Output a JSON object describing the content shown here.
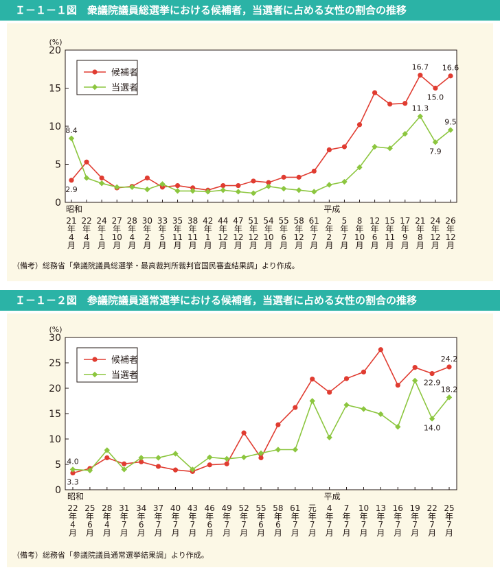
{
  "figure1": {
    "title": "Ｉ－１－１図　衆議院議員総選挙における候補者，当選者に占める女性の割合の推移",
    "note": "（備考）総務省「衆議院議員総選挙・最高裁判所裁判官国民審査結果調」より作成。"
  },
  "figure2": {
    "title": "Ｉ－１－２図　参議院議員通常選挙における候補者，当選者に占める女性の割合の推移",
    "note": "（備考）総務省「参議院議員通常選挙結果調」より作成。"
  },
  "colors": {
    "candidates": "#e03c31",
    "elected": "#8cc63f",
    "banner": "#2bb3a6",
    "panel": "#fcf8e6"
  },
  "chart_data": [
    {
      "type": "line",
      "unit": "(%)",
      "ylim": [
        0,
        20
      ],
      "yticks": [
        0,
        5,
        10,
        15,
        20
      ],
      "era_labels": [
        {
          "index": 0,
          "label": "昭和"
        },
        {
          "index": 17,
          "label": "平成"
        }
      ],
      "categories": [
        {
          "year": "21",
          "month": "4"
        },
        {
          "year": "22",
          "month": "4"
        },
        {
          "year": "24",
          "month": "1"
        },
        {
          "year": "27",
          "month": "10"
        },
        {
          "year": "28",
          "month": "4"
        },
        {
          "year": "30",
          "month": "2"
        },
        {
          "year": "33",
          "month": "5"
        },
        {
          "year": "35",
          "month": "11"
        },
        {
          "year": "38",
          "month": "11"
        },
        {
          "year": "42",
          "month": "1"
        },
        {
          "year": "44",
          "month": "12"
        },
        {
          "year": "47",
          "month": "12"
        },
        {
          "year": "51",
          "month": "12"
        },
        {
          "year": "54",
          "month": "10"
        },
        {
          "year": "55",
          "month": "6"
        },
        {
          "year": "58",
          "month": "12"
        },
        {
          "year": "61",
          "month": "7"
        },
        {
          "year": "2",
          "month": "2"
        },
        {
          "year": "5",
          "month": "7"
        },
        {
          "year": "8",
          "month": "10"
        },
        {
          "year": "12",
          "month": "6"
        },
        {
          "year": "15",
          "month": "11"
        },
        {
          "year": "17",
          "month": "9"
        },
        {
          "year": "21",
          "month": "8"
        },
        {
          "year": "24",
          "month": "12"
        },
        {
          "year": "26",
          "month": "12"
        }
      ],
      "series": [
        {
          "name": "候補者",
          "values": [
            2.9,
            5.3,
            3.2,
            1.9,
            2.1,
            3.2,
            2.0,
            2.2,
            1.9,
            1.6,
            2.2,
            2.2,
            2.8,
            2.6,
            3.3,
            3.3,
            4.1,
            6.9,
            7.3,
            10.2,
            14.4,
            12.9,
            13.0,
            16.7,
            15.0,
            16.6
          ]
        },
        {
          "name": "当選者",
          "values": [
            8.4,
            3.2,
            2.5,
            2.0,
            2.0,
            1.7,
            2.4,
            1.5,
            1.5,
            1.4,
            1.6,
            1.4,
            1.2,
            2.1,
            1.8,
            1.6,
            1.4,
            2.3,
            2.7,
            4.6,
            7.3,
            7.1,
            9.0,
            11.3,
            7.9,
            9.5
          ]
        }
      ],
      "data_labels": [
        {
          "series": 0,
          "index": 0,
          "text": "2.9",
          "pos": "below"
        },
        {
          "series": 1,
          "index": 0,
          "text": "8.4",
          "pos": "above"
        },
        {
          "series": 0,
          "index": 23,
          "text": "16.7",
          "pos": "above"
        },
        {
          "series": 0,
          "index": 24,
          "text": "15.0",
          "pos": "below"
        },
        {
          "series": 0,
          "index": 25,
          "text": "16.6",
          "pos": "above"
        },
        {
          "series": 1,
          "index": 23,
          "text": "11.3",
          "pos": "above"
        },
        {
          "series": 1,
          "index": 24,
          "text": "7.9",
          "pos": "below"
        },
        {
          "series": 1,
          "index": 25,
          "text": "9.5",
          "pos": "above"
        }
      ],
      "grid": false,
      "legend": "top-left"
    },
    {
      "type": "line",
      "unit": "(%)",
      "ylim": [
        0,
        30
      ],
      "yticks": [
        0,
        5,
        10,
        15,
        20,
        25,
        30
      ],
      "era_labels": [
        {
          "index": 0,
          "label": "昭和"
        },
        {
          "index": 15,
          "label": "平成"
        }
      ],
      "categories": [
        {
          "year": "22",
          "month": "4"
        },
        {
          "year": "25",
          "month": "6"
        },
        {
          "year": "28",
          "month": "4"
        },
        {
          "year": "31",
          "month": "7"
        },
        {
          "year": "34",
          "month": "6"
        },
        {
          "year": "37",
          "month": "7"
        },
        {
          "year": "40",
          "month": "7"
        },
        {
          "year": "43",
          "month": "7"
        },
        {
          "year": "46",
          "month": "6"
        },
        {
          "year": "49",
          "month": "7"
        },
        {
          "year": "52",
          "month": "7"
        },
        {
          "year": "55",
          "month": "6"
        },
        {
          "year": "58",
          "month": "6"
        },
        {
          "year": "61",
          "month": "7"
        },
        {
          "year": "元",
          "month": "7"
        },
        {
          "year": "4",
          "month": "7"
        },
        {
          "year": "7",
          "month": "7"
        },
        {
          "year": "10",
          "month": "7"
        },
        {
          "year": "13",
          "month": "7"
        },
        {
          "year": "16",
          "month": "7"
        },
        {
          "year": "19",
          "month": "7"
        },
        {
          "year": "22",
          "month": "7"
        },
        {
          "year": "25",
          "month": "7"
        }
      ],
      "series": [
        {
          "name": "候補者",
          "values": [
            3.3,
            4.2,
            6.3,
            5.1,
            5.5,
            4.6,
            3.9,
            3.6,
            4.9,
            5.1,
            11.2,
            6.3,
            12.8,
            16.2,
            21.8,
            19.2,
            21.9,
            23.2,
            27.6,
            20.6,
            24.1,
            22.9,
            24.2
          ]
        },
        {
          "name": "当選者",
          "values": [
            4.0,
            3.8,
            7.8,
            4.0,
            6.3,
            6.3,
            7.1,
            4.0,
            6.4,
            6.1,
            6.4,
            7.2,
            7.9,
            7.9,
            17.5,
            10.3,
            16.7,
            15.9,
            14.9,
            12.4,
            21.5,
            14.0,
            18.2
          ]
        }
      ],
      "data_labels": [
        {
          "series": 1,
          "index": 0,
          "text": "4.0",
          "pos": "above"
        },
        {
          "series": 0,
          "index": 0,
          "text": "3.3",
          "pos": "below"
        },
        {
          "series": 0,
          "index": 21,
          "text": "22.9",
          "pos": "below"
        },
        {
          "series": 0,
          "index": 22,
          "text": "24.2",
          "pos": "above"
        },
        {
          "series": 1,
          "index": 21,
          "text": "14.0",
          "pos": "below"
        },
        {
          "series": 1,
          "index": 22,
          "text": "18.2",
          "pos": "above"
        }
      ],
      "grid": false,
      "legend": "top-left"
    }
  ]
}
